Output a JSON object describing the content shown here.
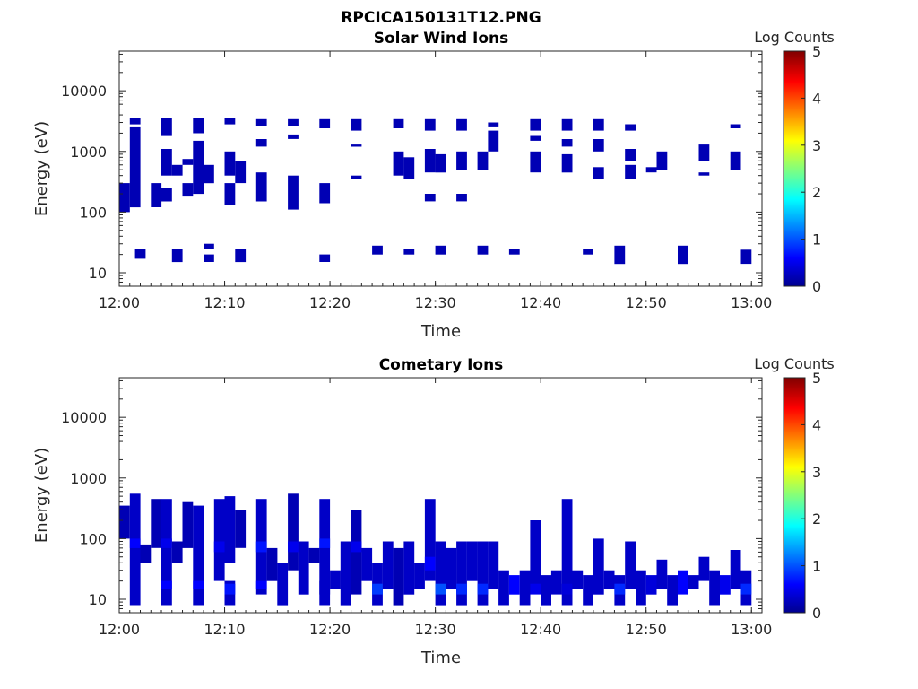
{
  "figure_title": "RPCICA150131T12.PNG",
  "colors": {
    "background": "#ffffff",
    "axes": "#262626",
    "colormap": [
      "#00008f",
      "#0000ff",
      "#00ffff",
      "#ffff00",
      "#ff0000",
      "#800000"
    ]
  },
  "chart_data": [
    {
      "type": "heatmap",
      "title": "Solar Wind Ions",
      "xlabel": "Time",
      "ylabel": "Energy (eV)",
      "x_ticks": [
        "12:00",
        "12:10",
        "12:20",
        "12:30",
        "12:40",
        "12:50",
        "13:00"
      ],
      "y_ticks": [
        "10",
        "100",
        "1000",
        "10000"
      ],
      "y_scale": "log",
      "ylim": [
        6,
        45000
      ],
      "xlim_minutes": [
        0,
        61
      ],
      "colorbar": {
        "label": "Log Counts",
        "ticks": [
          "0",
          "1",
          "2",
          "3",
          "4",
          "5"
        ],
        "range": [
          0,
          5
        ]
      },
      "cells": [
        [
          0,
          1,
          100,
          300,
          0.2
        ],
        [
          1,
          2,
          120,
          2500,
          0.2
        ],
        [
          1,
          2,
          2800,
          3600,
          0.2
        ],
        [
          1.5,
          2.5,
          17,
          25,
          0.2
        ],
        [
          3,
          4,
          120,
          300,
          0.2
        ],
        [
          4,
          5,
          150,
          250,
          0.2
        ],
        [
          4,
          5,
          400,
          1100,
          0.2
        ],
        [
          4,
          5,
          1800,
          3600,
          0.2
        ],
        [
          5,
          6,
          15,
          25,
          0.2
        ],
        [
          5,
          6,
          400,
          600,
          0.2
        ],
        [
          6,
          7,
          180,
          300,
          0.2
        ],
        [
          6,
          7,
          600,
          750,
          0.2
        ],
        [
          7,
          8,
          200,
          1500,
          0.2
        ],
        [
          7,
          8,
          2000,
          3600,
          0.2
        ],
        [
          8,
          9,
          15,
          20,
          0.2
        ],
        [
          8,
          9,
          25,
          30,
          0.2
        ],
        [
          8,
          9,
          300,
          600,
          0.2
        ],
        [
          10,
          11,
          130,
          300,
          0.2
        ],
        [
          10,
          11,
          400,
          1000,
          0.2
        ],
        [
          10,
          11,
          2800,
          3600,
          0.2
        ],
        [
          11,
          12,
          15,
          25,
          0.2
        ],
        [
          11,
          12,
          300,
          700,
          0.2
        ],
        [
          13,
          14,
          150,
          450,
          0.2
        ],
        [
          13,
          14,
          1200,
          1600,
          0.2
        ],
        [
          13,
          14,
          2600,
          3400,
          0.2
        ],
        [
          16,
          17,
          110,
          400,
          0.2
        ],
        [
          16,
          17,
          1600,
          1900,
          0.2
        ],
        [
          16,
          17,
          2600,
          3400,
          0.2
        ],
        [
          19,
          20,
          15,
          20,
          0.2
        ],
        [
          19,
          20,
          140,
          300,
          0.2
        ],
        [
          19,
          20,
          2400,
          3400,
          0.2
        ],
        [
          22,
          23,
          350,
          400,
          0.2
        ],
        [
          22,
          23,
          1200,
          1300,
          0.2
        ],
        [
          22,
          23,
          2200,
          3400,
          0.2
        ],
        [
          24,
          25,
          20,
          28,
          0.2
        ],
        [
          26,
          27,
          400,
          1000,
          0.2
        ],
        [
          26,
          27,
          2400,
          3400,
          0.2
        ],
        [
          27,
          28,
          350,
          800,
          0.2
        ],
        [
          27,
          28,
          20,
          25,
          0.2
        ],
        [
          29,
          30,
          150,
          200,
          0.2
        ],
        [
          29,
          30,
          450,
          1100,
          0.2
        ],
        [
          29,
          30,
          2200,
          3400,
          0.2
        ],
        [
          30,
          31,
          20,
          28,
          0.2
        ],
        [
          30,
          31,
          450,
          900,
          0.2
        ],
        [
          32,
          33,
          150,
          200,
          0.2
        ],
        [
          32,
          33,
          500,
          1000,
          0.2
        ],
        [
          32,
          33,
          2200,
          3400,
          0.2
        ],
        [
          34,
          35,
          20,
          28,
          0.2
        ],
        [
          34,
          35,
          500,
          1000,
          0.2
        ],
        [
          35,
          36,
          1000,
          2200,
          0.2
        ],
        [
          35,
          36,
          2500,
          3000,
          0.2
        ],
        [
          37,
          38,
          20,
          25,
          0.2
        ],
        [
          39,
          40,
          450,
          1000,
          0.2
        ],
        [
          39,
          40,
          1500,
          1800,
          0.2
        ],
        [
          39,
          40,
          2200,
          3400,
          0.2
        ],
        [
          42,
          43,
          450,
          900,
          0.2
        ],
        [
          42,
          43,
          1200,
          1600,
          0.2
        ],
        [
          42,
          43,
          2200,
          3400,
          0.2
        ],
        [
          44,
          45,
          20,
          25,
          0.2
        ],
        [
          45,
          46,
          350,
          550,
          0.2
        ],
        [
          45,
          46,
          1000,
          1600,
          0.2
        ],
        [
          45,
          46,
          2200,
          3400,
          0.2
        ],
        [
          47,
          48,
          14,
          28,
          0.2
        ],
        [
          48,
          49,
          350,
          600,
          0.2
        ],
        [
          48,
          49,
          700,
          1100,
          0.2
        ],
        [
          48,
          49,
          2200,
          2800,
          0.2
        ],
        [
          50,
          51,
          450,
          550,
          0.2
        ],
        [
          51,
          52,
          500,
          1000,
          0.2
        ],
        [
          53,
          54,
          14,
          28,
          0.2
        ],
        [
          55,
          56,
          700,
          1300,
          0.2
        ],
        [
          55,
          56,
          400,
          450,
          0.2
        ],
        [
          58,
          59,
          500,
          1000,
          0.2
        ],
        [
          58,
          59,
          2400,
          2800,
          0.2
        ],
        [
          59,
          60,
          14,
          24,
          0.2
        ]
      ]
    },
    {
      "type": "heatmap",
      "title": "Cometary Ions",
      "xlabel": "Time",
      "ylabel": "Energy (eV)",
      "x_ticks": [
        "12:00",
        "12:10",
        "12:20",
        "12:30",
        "12:40",
        "12:50",
        "13:00"
      ],
      "y_ticks": [
        "10",
        "100",
        "1000",
        "10000"
      ],
      "y_scale": "log",
      "ylim": [
        6,
        45000
      ],
      "xlim_minutes": [
        0,
        61
      ],
      "colorbar": {
        "label": "Log Counts",
        "ticks": [
          "0",
          "1",
          "2",
          "3",
          "4",
          "5"
        ],
        "range": [
          0,
          5
        ]
      },
      "cells": [
        [
          0,
          1,
          100,
          350,
          0.2
        ],
        [
          1,
          2,
          8,
          550,
          0.3
        ],
        [
          1,
          2,
          70,
          100,
          0.6
        ],
        [
          2,
          3,
          40,
          80,
          0.2
        ],
        [
          3,
          4,
          70,
          450,
          0.2
        ],
        [
          4,
          5,
          8,
          450,
          0.3
        ],
        [
          4,
          5,
          15,
          20,
          0.6
        ],
        [
          4,
          5,
          70,
          100,
          0.5
        ],
        [
          5,
          6,
          40,
          90,
          0.2
        ],
        [
          6,
          7,
          70,
          400,
          0.2
        ],
        [
          7,
          8,
          8,
          350,
          0.3
        ],
        [
          7,
          8,
          15,
          20,
          0.6
        ],
        [
          9,
          10,
          20,
          450,
          0.3
        ],
        [
          9,
          10,
          60,
          90,
          0.5
        ],
        [
          10,
          11,
          40,
          500,
          0.3
        ],
        [
          10,
          11,
          8,
          20,
          0.3
        ],
        [
          10,
          11,
          12,
          18,
          0.7
        ],
        [
          11,
          12,
          70,
          300,
          0.2
        ],
        [
          13,
          14,
          12,
          450,
          0.3
        ],
        [
          13,
          14,
          15,
          20,
          0.6
        ],
        [
          13,
          14,
          60,
          90,
          0.7
        ],
        [
          14,
          15,
          20,
          70,
          0.2
        ],
        [
          15,
          16,
          8,
          40,
          0.3
        ],
        [
          16,
          17,
          30,
          550,
          0.2
        ],
        [
          16,
          17,
          60,
          90,
          0.5
        ],
        [
          17,
          18,
          12,
          90,
          0.3
        ],
        [
          18,
          19,
          40,
          70,
          0.2
        ],
        [
          19,
          20,
          8,
          450,
          0.3
        ],
        [
          19,
          20,
          70,
          100,
          0.7
        ],
        [
          19,
          20,
          12,
          20,
          0.3
        ],
        [
          20,
          21,
          15,
          30,
          0.3
        ],
        [
          21,
          22,
          8,
          90,
          0.3
        ],
        [
          22,
          23,
          12,
          300,
          0.2
        ],
        [
          22,
          23,
          60,
          90,
          0.5
        ],
        [
          23,
          24,
          20,
          70,
          0.3
        ],
        [
          24,
          25,
          8,
          40,
          0.3
        ],
        [
          24,
          25,
          12,
          18,
          0.9
        ],
        [
          25,
          26,
          15,
          90,
          0.3
        ],
        [
          26,
          27,
          8,
          70,
          0.2
        ],
        [
          27,
          28,
          12,
          90,
          0.3
        ],
        [
          28,
          29,
          15,
          40,
          0.3
        ],
        [
          29,
          30,
          20,
          450,
          0.3
        ],
        [
          29,
          30,
          30,
          50,
          0.6
        ],
        [
          30,
          31,
          8,
          90,
          0.3
        ],
        [
          30,
          31,
          12,
          18,
          1.0
        ],
        [
          31,
          32,
          15,
          70,
          0.3
        ],
        [
          32,
          33,
          8,
          90,
          0.3
        ],
        [
          32,
          33,
          12,
          18,
          0.8
        ],
        [
          33,
          34,
          20,
          90,
          0.3
        ],
        [
          34,
          35,
          8,
          90,
          0.3
        ],
        [
          34,
          35,
          12,
          18,
          0.8
        ],
        [
          35,
          36,
          15,
          90,
          0.3
        ],
        [
          36,
          37,
          8,
          30,
          0.3
        ],
        [
          37,
          38,
          12,
          25,
          0.6
        ],
        [
          38,
          39,
          8,
          30,
          0.3
        ],
        [
          39,
          40,
          15,
          200,
          0.3
        ],
        [
          39,
          40,
          12,
          18,
          0.5
        ],
        [
          40,
          41,
          8,
          25,
          0.3
        ],
        [
          41,
          42,
          12,
          30,
          0.3
        ],
        [
          42,
          43,
          8,
          450,
          0.3
        ],
        [
          42,
          43,
          12,
          18,
          0.4
        ],
        [
          43,
          44,
          15,
          30,
          0.3
        ],
        [
          44,
          45,
          8,
          25,
          0.3
        ],
        [
          45,
          46,
          12,
          100,
          0.3
        ],
        [
          46,
          47,
          15,
          30,
          0.3
        ],
        [
          47,
          48,
          8,
          25,
          0.3
        ],
        [
          47,
          48,
          12,
          18,
          0.8
        ],
        [
          48,
          49,
          15,
          90,
          0.3
        ],
        [
          49,
          50,
          8,
          30,
          0.3
        ],
        [
          50,
          51,
          12,
          25,
          0.4
        ],
        [
          51,
          52,
          15,
          45,
          0.3
        ],
        [
          52,
          53,
          8,
          25,
          0.3
        ],
        [
          53,
          54,
          12,
          30,
          0.6
        ],
        [
          54,
          55,
          15,
          25,
          0.3
        ],
        [
          55,
          56,
          20,
          50,
          0.3
        ],
        [
          56,
          57,
          8,
          30,
          0.3
        ],
        [
          57,
          58,
          12,
          25,
          0.5
        ],
        [
          58,
          59,
          15,
          65,
          0.3
        ],
        [
          59,
          60,
          8,
          30,
          0.3
        ],
        [
          59,
          60,
          12,
          18,
          0.8
        ]
      ]
    }
  ]
}
